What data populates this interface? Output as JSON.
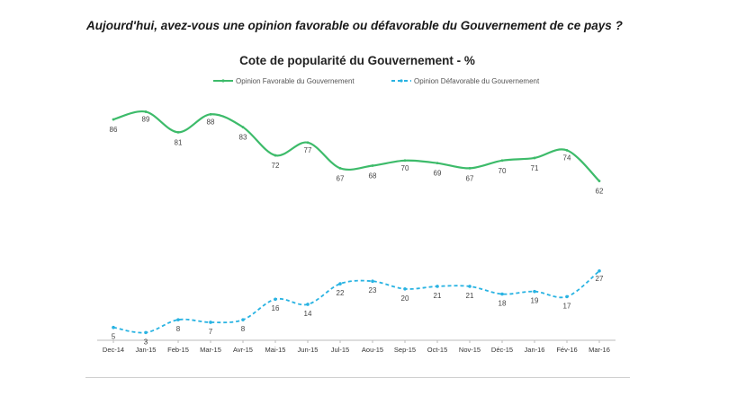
{
  "question": "Aujourd'hui, avez-vous une opinion favorable ou défavorable du Gouvernement de ce pays ?",
  "colors": {
    "favorable": "#3dbb6a",
    "defavorable": "#29b3e2",
    "axis": "#bbbbbb"
  },
  "chart_data": {
    "type": "line",
    "title": "Cote de popularité du Gouvernement - %",
    "xlabel": "",
    "ylabel": "",
    "ylim": [
      0,
      100
    ],
    "grid": false,
    "legend_position": "top-center",
    "categories": [
      "Dec-14",
      "Jan-15",
      "Feb-15",
      "Mar-15",
      "Avr-15",
      "Mai-15",
      "Jun-15",
      "Jul-15",
      "Aou-15",
      "Sep-15",
      "Oct-15",
      "Nov-15",
      "Déc-15",
      "Jan-16",
      "Fév-16",
      "Mar-16"
    ],
    "series": [
      {
        "name": "Opinion Favorable du Gouvernement",
        "style": "solid",
        "values": [
          86,
          89,
          81,
          88,
          83,
          72,
          77,
          67,
          68,
          70,
          69,
          67,
          70,
          71,
          74,
          62
        ]
      },
      {
        "name": "Opinion Défavorable du Gouvernement",
        "style": "dashed",
        "values": [
          5,
          3,
          8,
          7,
          8,
          16,
          14,
          22,
          23,
          20,
          21,
          21,
          18,
          19,
          17,
          27
        ]
      }
    ]
  }
}
